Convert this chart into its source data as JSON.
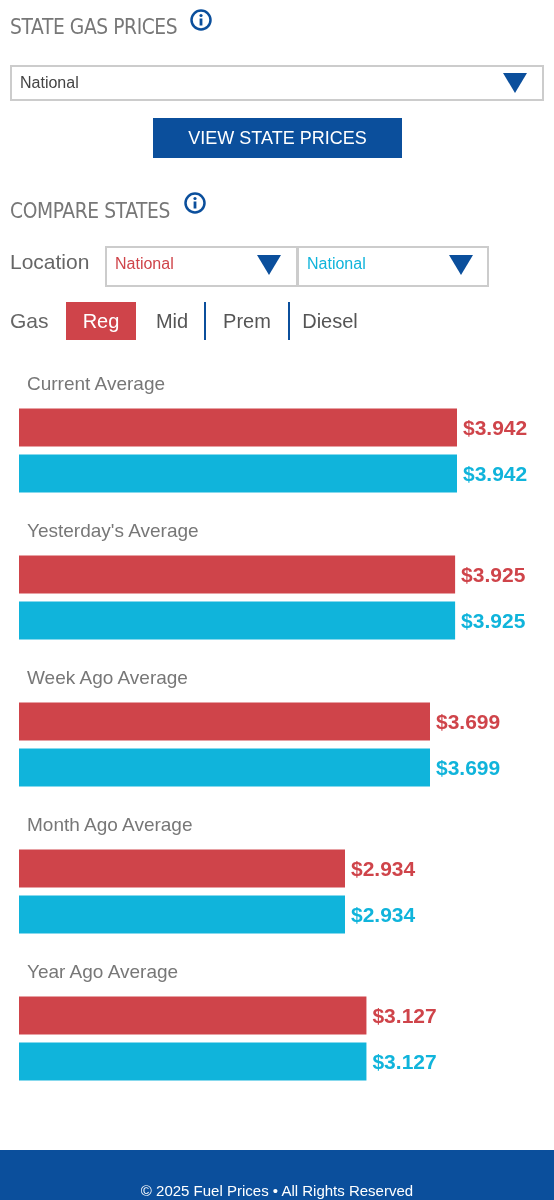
{
  "chart_data": {
    "type": "bar",
    "orientation": "horizontal",
    "title": "STATE GAS PRICES",
    "categories": [
      "Current Average",
      "Yesterday's Average",
      "Week Ago Average",
      "Month Ago Average",
      "Year Ago Average"
    ],
    "series": [
      {
        "name": "National",
        "color": "#cf444a",
        "values": [
          3.942,
          3.925,
          3.699,
          2.934,
          3.127
        ],
        "value_labels": [
          "$3.942",
          "$3.925",
          "$3.699",
          "$2.934",
          "$3.127"
        ]
      },
      {
        "name": "National",
        "color": "#10b4db",
        "values": [
          3.942,
          3.925,
          3.699,
          2.934,
          3.127
        ],
        "value_labels": [
          "$3.942",
          "$3.925",
          "$3.699",
          "$2.934",
          "$3.127"
        ]
      }
    ],
    "legend": "top",
    "tick_labels": "y",
    "grid": false,
    "annotations": [
      "National",
      "VIEW STATE PRICES",
      "COMPARE STATES",
      "Location",
      "Gas",
      "Reg",
      "Mid",
      "Prem",
      "Diesel",
      "© 2025 Fuel Prices • All Rights Reserved"
    ]
  }
}
